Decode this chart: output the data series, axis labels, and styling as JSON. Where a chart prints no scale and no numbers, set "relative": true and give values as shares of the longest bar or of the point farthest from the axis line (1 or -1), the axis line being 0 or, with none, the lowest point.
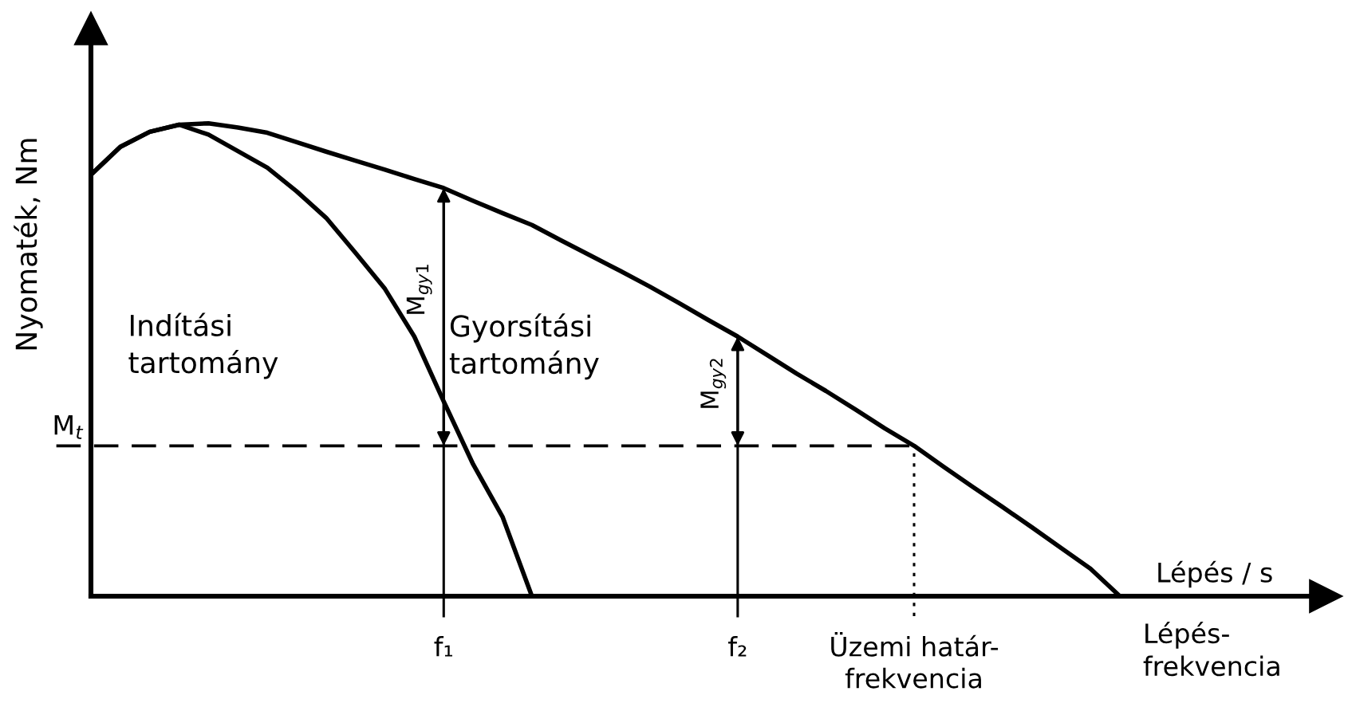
{
  "chart_data": {
    "type": "line",
    "relative": true,
    "xlabel": "Lépés / s",
    "ylabel": "Nyomaték, Nm",
    "line_style": "solid",
    "marker": "none",
    "categories": [
      null,
      null,
      null,
      null,
      null,
      null,
      null,
      null,
      null,
      null,
      null,
      null,
      "f₁",
      null,
      null,
      null,
      null,
      null,
      null,
      null,
      null,
      null,
      "f₂",
      null,
      null,
      null,
      null,
      null,
      "Üzemi határ-\nfrekvencia",
      null,
      null,
      null,
      null,
      null,
      null,
      null
    ],
    "series": [
      {
        "color": "#000000",
        "values": [
          0.891,
          0.95,
          0.982,
          0.997,
          1.0,
          0.991,
          0.98,
          0.96,
          0.94,
          0.921,
          0.902,
          0.882,
          0.863,
          0.836,
          0.81,
          0.785,
          0.752,
          0.72,
          0.688,
          0.655,
          0.62,
          0.584,
          0.549,
          0.51,
          0.471,
          0.434,
          0.395,
          0.355,
          0.318,
          0.274,
          0.231,
          0.189,
          0.146,
          0.102,
          0.058,
          0.0
        ]
      },
      {
        "color": "#000000",
        "values": [
          0.891,
          0.95,
          0.982,
          0.997,
          0.976,
          0.941,
          0.906,
          0.856,
          0.8,
          0.726,
          0.65,
          0.549,
          0.412,
          0.279,
          0.168,
          0.0,
          null,
          null,
          null,
          null,
          null,
          null,
          null,
          null,
          null,
          null,
          null,
          null,
          null,
          null,
          null,
          null,
          null,
          null,
          null,
          null
        ]
      }
    ],
    "ref_lines": [
      {
        "axis": "y",
        "value": 0.318,
        "label": "M$_{t}$",
        "line_style": "dashed",
        "color": "#000000"
      },
      {
        "axis": "x",
        "value": "f₁",
        "line_style": "solid",
        "color": "#000000"
      },
      {
        "axis": "x",
        "value": "f₂",
        "line_style": "solid",
        "color": "#000000"
      },
      {
        "axis": "x",
        "value": "Üzemi határ-\nfrekvencia",
        "line_style": "dotted",
        "color": "#000000"
      }
    ],
    "annotations": [
      "Indítási\ntartomány",
      "Gyorsítási\ntartomány",
      {
        "text": "M$_{gy1}$",
        "x": "f₁",
        "y": 0.649
      },
      {
        "text": "M$_{gy2}$",
        "x": "f₂",
        "y": 0.45
      },
      "Lépés-\nfrekvencia"
    ]
  }
}
